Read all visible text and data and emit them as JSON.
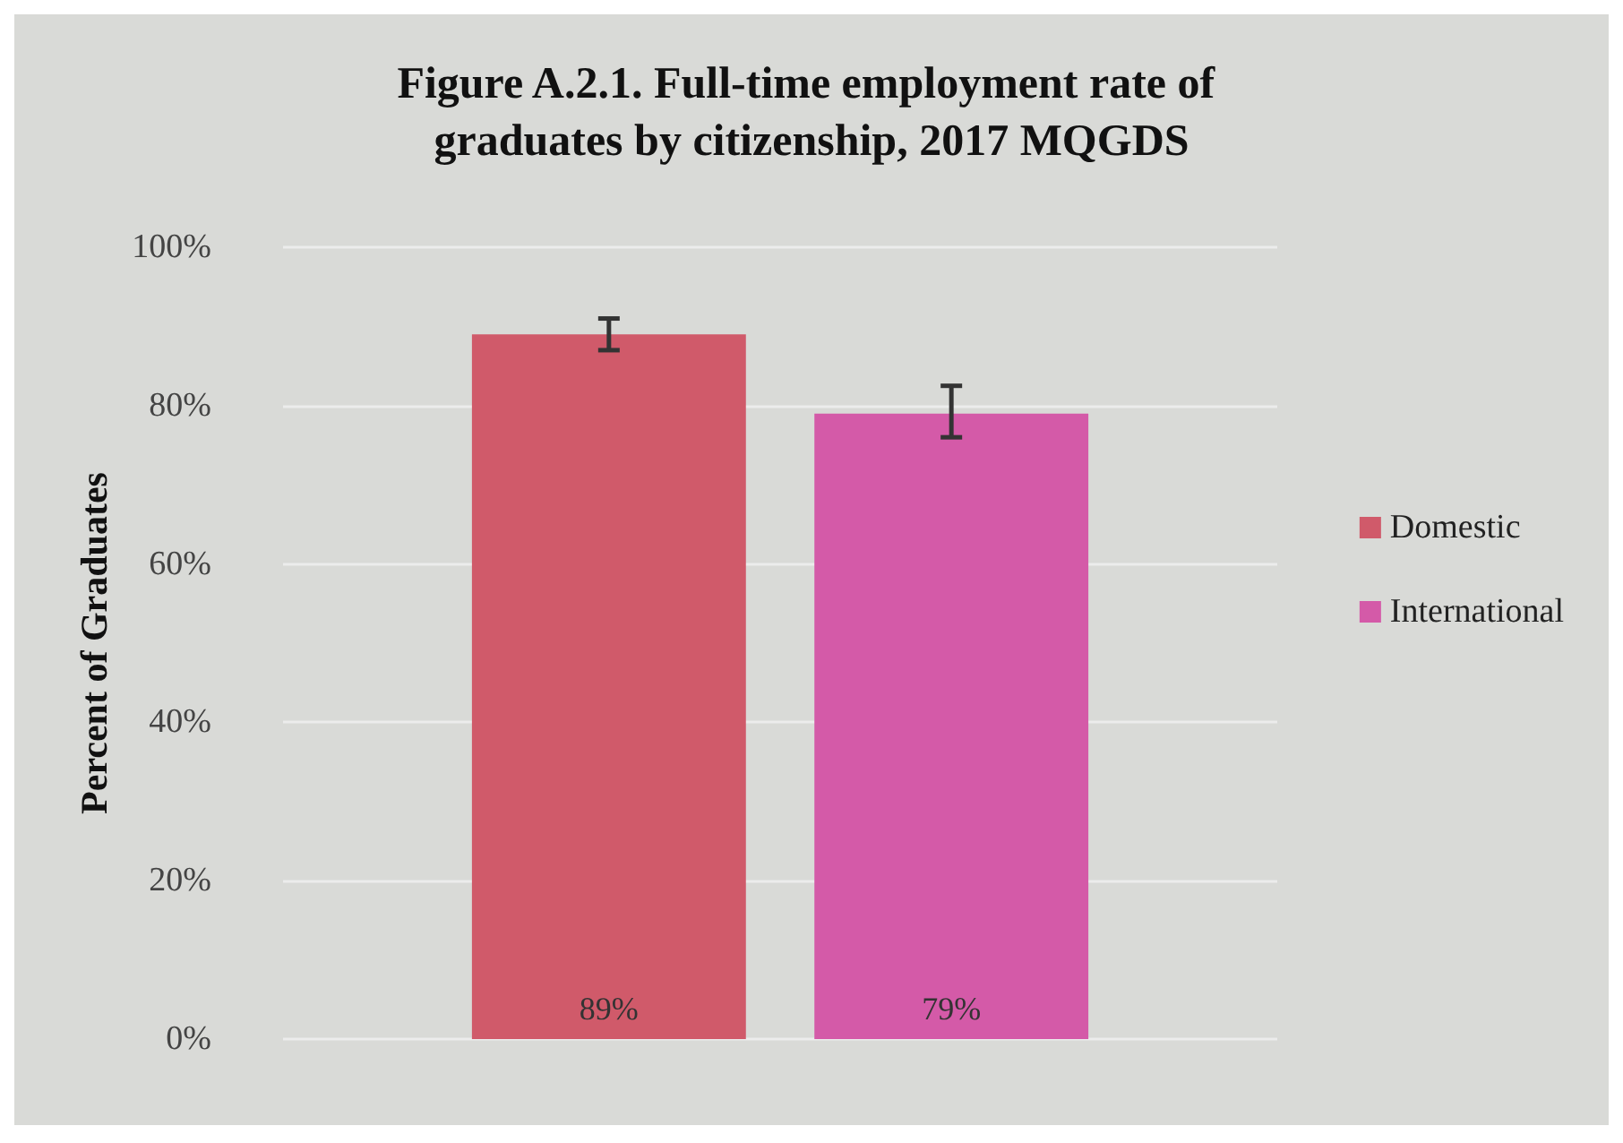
{
  "chart_data": {
    "type": "bar",
    "title": "Figure A.2.1. Full-time employment rate of graduates by citizenship, 2017 MQGDS",
    "ylabel": "Percent of Graduates",
    "categories": [
      null
    ],
    "series": [
      {
        "name": "Domestic",
        "color": "#d05a6a",
        "values": [
          89
        ],
        "errors": [
          [
            87,
            91
          ]
        ],
        "value_labels": [
          "89%"
        ]
      },
      {
        "name": "International",
        "color": "#d45aa8",
        "values": [
          79
        ],
        "errors": [
          [
            76,
            82.5
          ]
        ],
        "value_labels": [
          "79%"
        ]
      }
    ],
    "ylim": [
      0,
      100
    ],
    "yticks": [
      {
        "value": 0,
        "label": "0%"
      },
      {
        "value": 20,
        "label": "20%"
      },
      {
        "value": 40,
        "label": "40%"
      },
      {
        "value": 60,
        "label": "60%"
      },
      {
        "value": 80,
        "label": "80%"
      },
      {
        "value": 100,
        "label": "100%"
      }
    ],
    "grid": "y",
    "legend": "right"
  }
}
